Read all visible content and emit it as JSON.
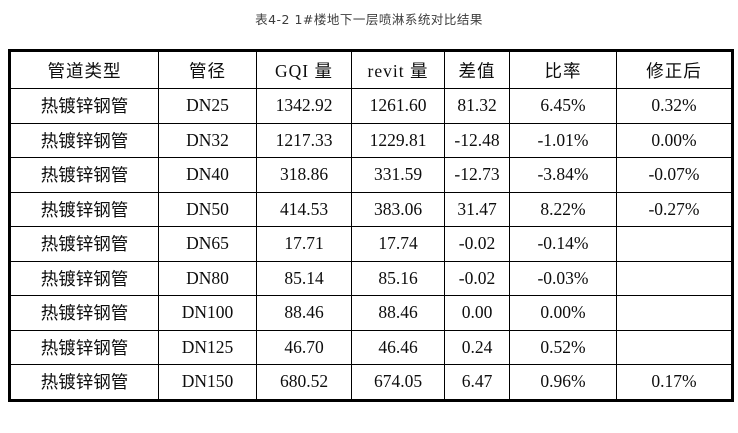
{
  "title": "表4-2 1#楼地下一层喷淋系统对比结果",
  "table": {
    "columns": [
      "管道类型",
      "管径",
      "GQI 量",
      "revit 量",
      "差值",
      "比率",
      "修正后"
    ],
    "rows": [
      [
        "热镀锌钢管",
        "DN25",
        "1342.92",
        "1261.60",
        "81.32",
        "6.45%",
        "0.32%"
      ],
      [
        "热镀锌钢管",
        "DN32",
        "1217.33",
        "1229.81",
        "-12.48",
        "-1.01%",
        "0.00%"
      ],
      [
        "热镀锌钢管",
        "DN40",
        "318.86",
        "331.59",
        "-12.73",
        "-3.84%",
        "-0.07%"
      ],
      [
        "热镀锌钢管",
        "DN50",
        "414.53",
        "383.06",
        "31.47",
        "8.22%",
        "-0.27%"
      ],
      [
        "热镀锌钢管",
        "DN65",
        "17.71",
        "17.74",
        "-0.02",
        "-0.14%",
        ""
      ],
      [
        "热镀锌钢管",
        "DN80",
        "85.14",
        "85.16",
        "-0.02",
        "-0.03%",
        ""
      ],
      [
        "热镀锌钢管",
        "DN100",
        "88.46",
        "88.46",
        "0.00",
        "0.00%",
        ""
      ],
      [
        "热镀锌钢管",
        "DN125",
        "46.70",
        "46.46",
        "0.24",
        "0.52%",
        ""
      ],
      [
        "热镀锌钢管",
        "DN150",
        "680.52",
        "674.05",
        "6.47",
        "0.96%",
        "0.17%"
      ]
    ]
  },
  "colors": {
    "border": "#000000",
    "text": "#0d0d0d",
    "caption_text": "#3d3d3d",
    "background": "#ffffff"
  }
}
